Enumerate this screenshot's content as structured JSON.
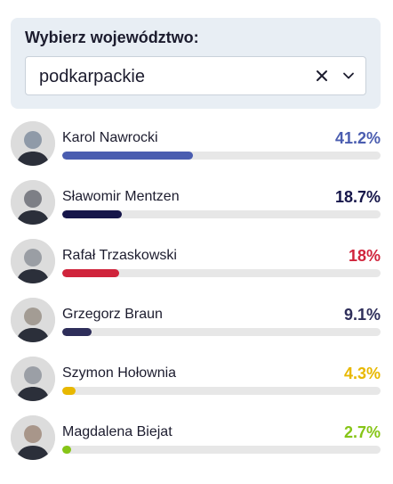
{
  "selector": {
    "label": "Wybierz województwo:",
    "value": "podkarpackie"
  },
  "candidates": [
    {
      "name": "Karol Nawrocki",
      "percent_text": "41.2%",
      "percent": 41.2,
      "color": "#4a5db0",
      "avatar_tone": "#8f9aa8"
    },
    {
      "name": "Sławomir Mentzen",
      "percent_text": "18.7%",
      "percent": 18.7,
      "color": "#16164a",
      "avatar_tone": "#7d7f86"
    },
    {
      "name": "Rafał Trzaskowski",
      "percent_text": "18%",
      "percent": 18,
      "color": "#d0243c",
      "avatar_tone": "#9a9ea4"
    },
    {
      "name": "Grzegorz Braun",
      "percent_text": "9.1%",
      "percent": 9.1,
      "color": "#2e2e5a",
      "avatar_tone": "#a39c94"
    },
    {
      "name": "Szymon Hołownia",
      "percent_text": "4.3%",
      "percent": 4.3,
      "color": "#e8b800",
      "avatar_tone": "#9b9fa6"
    },
    {
      "name": "Magdalena Biejat",
      "percent_text": "2.7%",
      "percent": 2.7,
      "color": "#86c517",
      "avatar_tone": "#a8968a"
    }
  ]
}
